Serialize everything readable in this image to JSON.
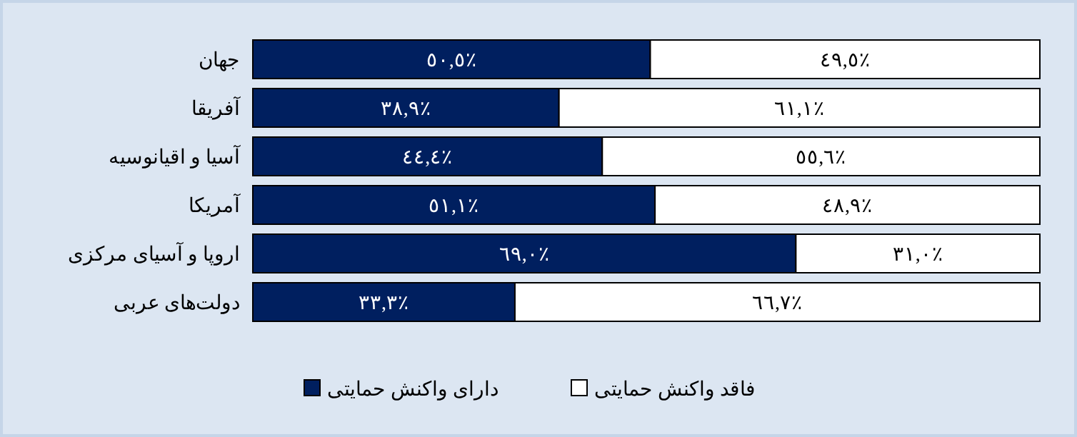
{
  "chart_data": {
    "type": "bar",
    "orientation": "horizontal",
    "stacked": true,
    "categories": [
      "جهان",
      "آفریقا",
      "آسیا و اقیانوسیه",
      "آمریکا",
      "اروپا و آسیای مرکزی",
      "دولت‌های عربی"
    ],
    "xlim": [
      0,
      100
    ],
    "legend": "bottom",
    "series": [
      {
        "name": "دارای واکنش حمایتی",
        "color": "#001f5f",
        "values": [
          50.5,
          38.9,
          44.4,
          51.1,
          69.0,
          33.3
        ],
        "value_labels": [
          "٥٠,٥٪",
          "٣٨,٩٪",
          "٤٤,٤٪",
          "٥١,١٪",
          "٦٩,٠٪",
          "٣٣,٣٪"
        ]
      },
      {
        "name": "فاقد واکنش حمایتی",
        "color": "#ffffff",
        "values": [
          49.5,
          61.1,
          55.6,
          48.9,
          31.0,
          66.7
        ],
        "value_labels": [
          "٤٩,٥٪",
          "٦١,١٪",
          "٥٥,٦٪",
          "٤٨,٩٪",
          "٣١,٠٪",
          "٦٦,٧٪"
        ]
      }
    ]
  }
}
